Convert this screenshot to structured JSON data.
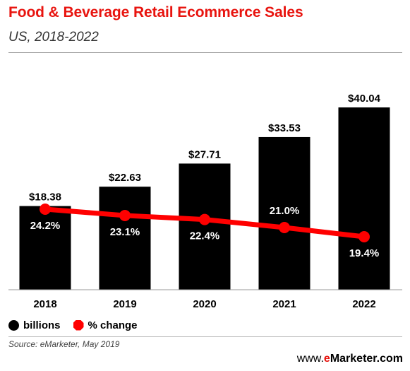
{
  "header": {
    "title": "Food & Beverage Retail Ecommerce Sales",
    "subtitle": "US, 2018-2022"
  },
  "legend": {
    "bar_label": "billions",
    "line_label": "% change"
  },
  "footer": {
    "source": "Source: eMarketer, May 2019",
    "brand_prefix": "www.",
    "brand_e": "e",
    "brand_rest": "Marketer.com"
  },
  "colors": {
    "title": "#e8140f",
    "bars": "#000000",
    "line": "#ff0000",
    "bar_value_text": "#000000",
    "line_value_text": "#ffffff"
  },
  "chart_data": {
    "type": "bar",
    "categories": [
      "2018",
      "2019",
      "2020",
      "2021",
      "2022"
    ],
    "series": [
      {
        "name": "billions",
        "type": "bar",
        "values": [
          18.38,
          22.63,
          27.71,
          33.53,
          40.04
        ],
        "labels": [
          "$18.38",
          "$22.63",
          "$27.71",
          "$33.53",
          "$40.04"
        ]
      },
      {
        "name": "% change",
        "type": "line",
        "values": [
          24.2,
          23.1,
          22.4,
          21.0,
          19.4
        ],
        "labels": [
          "24.2%",
          "23.1%",
          "22.4%",
          "21.0%",
          "19.4%"
        ]
      }
    ],
    "title": "Food & Beverage Retail Ecommerce Sales",
    "subtitle": "US, 2018-2022",
    "legend_position": "bottom-left",
    "grid": false
  }
}
